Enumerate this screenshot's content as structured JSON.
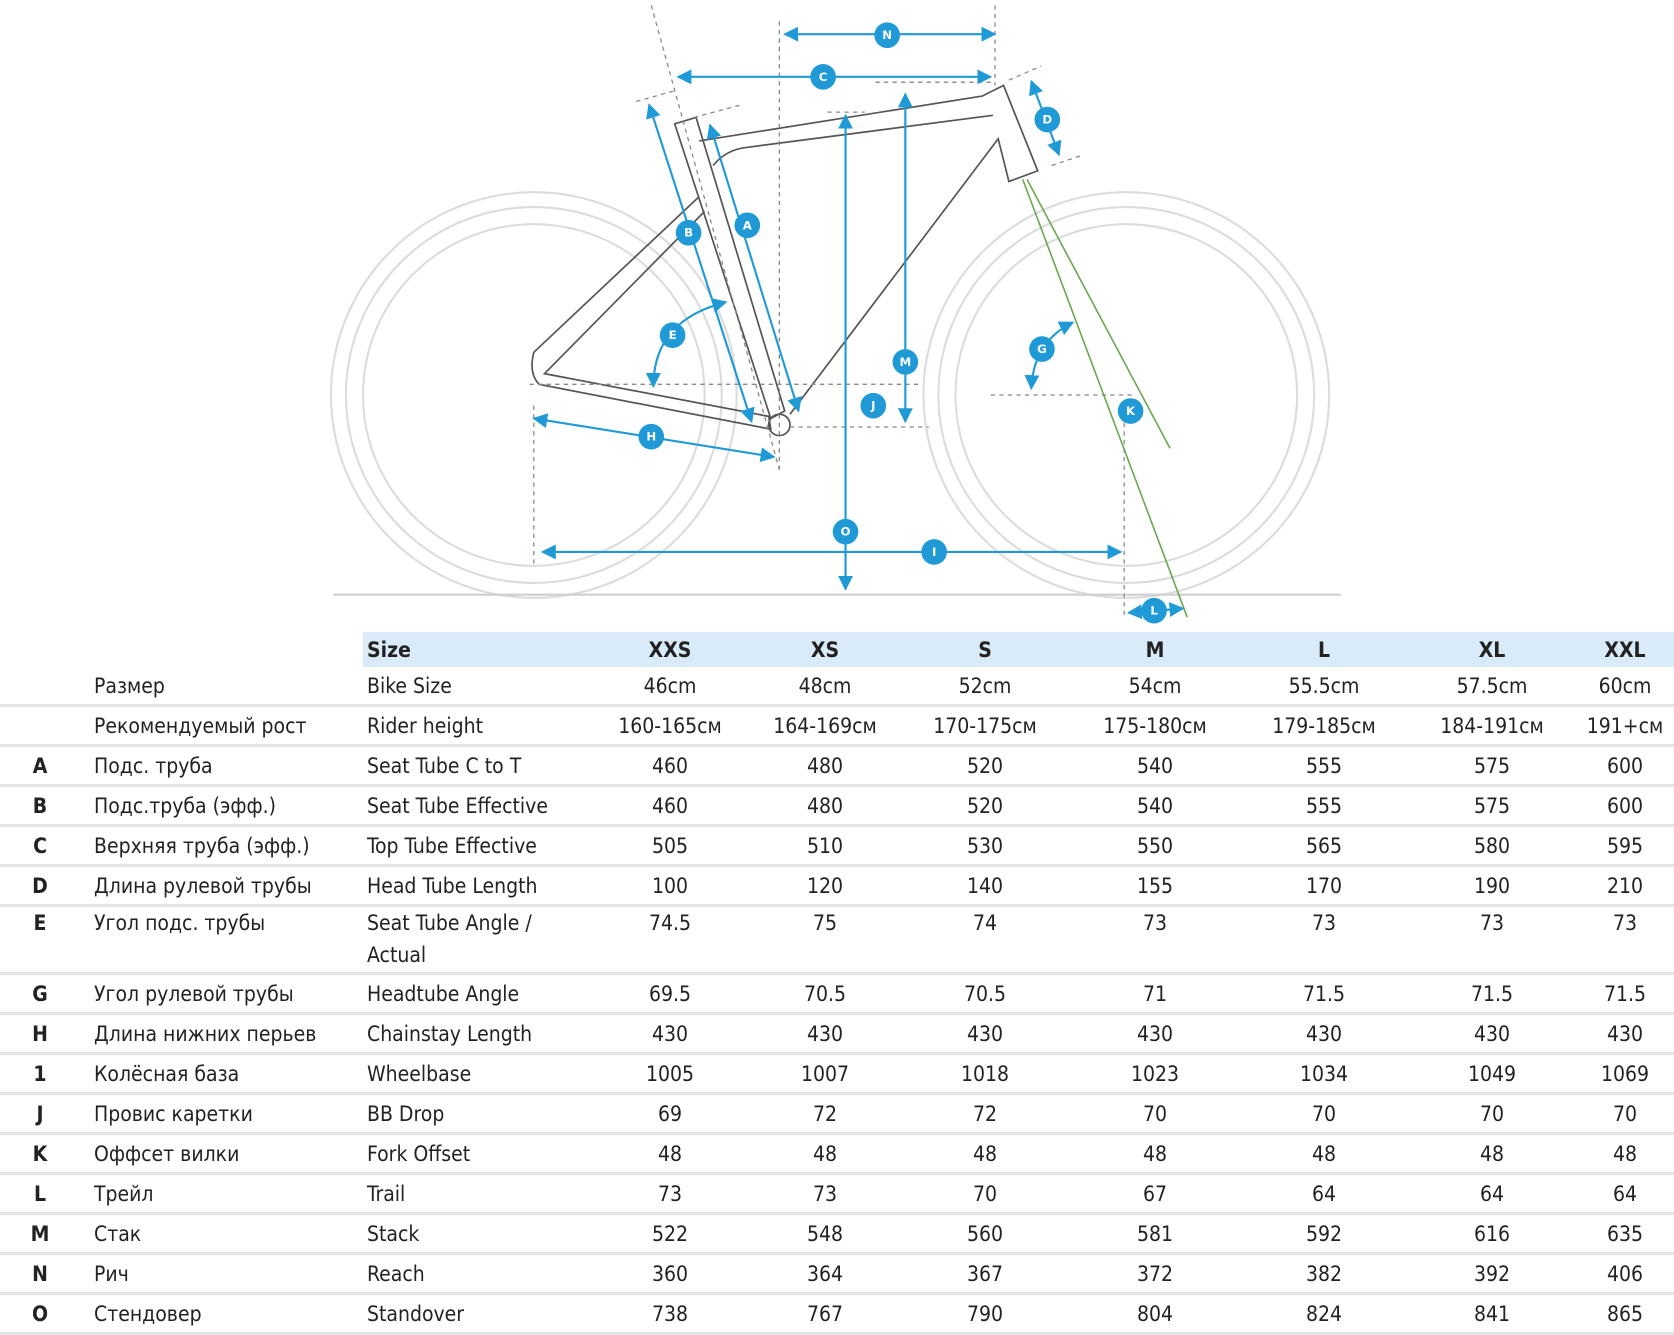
{
  "diagram": {
    "labels": [
      "N",
      "C",
      "D",
      "B",
      "A",
      "E",
      "M",
      "J",
      "G",
      "K",
      "H",
      "O",
      "I",
      "L"
    ]
  },
  "table": {
    "header": [
      "Size",
      "XXS",
      "XS",
      "S",
      "M",
      "L",
      "XL",
      "XXL"
    ],
    "rows": [
      {
        "ru": "Размер",
        "en": "Bike Size",
        "values": [
          "46cm",
          "48cm",
          "52cm",
          "54cm",
          "55.5cm",
          "57.5cm",
          "60cm"
        ]
      },
      {
        "ru": "Рекомендуемый рост",
        "en": "Rider height",
        "values": [
          "160-165см",
          "164-169см",
          "170-175см",
          "175-180см",
          "179-185см",
          "184-191см",
          "191+см"
        ]
      },
      {
        "code": "A",
        "ru": "Подс. труба",
        "en": "Seat Tube C to T",
        "values": [
          460,
          480,
          520,
          540,
          555,
          575,
          600
        ]
      },
      {
        "code": "B",
        "ru": "Подс.труба (эфф.)",
        "en": "Seat Tube Effective",
        "values": [
          460,
          480,
          520,
          540,
          555,
          575,
          600
        ]
      },
      {
        "code": "C",
        "ru": "Верхняя труба (эфф.)",
        "en": "Top Tube Effective",
        "values": [
          505,
          510,
          530,
          550,
          565,
          580,
          595
        ]
      },
      {
        "code": "D",
        "ru": "Длина рулевой трубы",
        "en": "Head Tube Length",
        "values": [
          100,
          120,
          140,
          155,
          170,
          190,
          210
        ]
      },
      {
        "code": "E",
        "ru": "Угол подс. трубы",
        "en": "Seat Tube Angle / Actual",
        "values": [
          74.5,
          75,
          74,
          73,
          73,
          73,
          73
        ]
      },
      {
        "code": "G",
        "ru": "Угол рулевой трубы",
        "en": "Headtube Angle",
        "values": [
          69.5,
          70.5,
          70.5,
          71,
          71.5,
          71.5,
          71.5
        ]
      },
      {
        "code": "H",
        "ru": "Длина нижних перьев",
        "en": "Chainstay Length",
        "values": [
          430,
          430,
          430,
          430,
          430,
          430,
          430
        ]
      },
      {
        "code": "1",
        "ru": "Колёсная база",
        "en": "Wheelbase",
        "values": [
          1005,
          1007,
          1018,
          1023,
          1034,
          1049,
          1069
        ]
      },
      {
        "code": "J",
        "ru": "Провис каретки",
        "en": "BB Drop",
        "values": [
          69,
          72,
          72,
          70,
          70,
          70,
          70
        ]
      },
      {
        "code": "K",
        "ru": "Оффсет вилки",
        "en": "Fork Offset",
        "values": [
          48,
          48,
          48,
          48,
          48,
          48,
          48
        ]
      },
      {
        "code": "L",
        "ru": "Трейл",
        "en": "Trail",
        "values": [
          73,
          73,
          70,
          67,
          64,
          64,
          64
        ]
      },
      {
        "code": "M",
        "ru": "Стак",
        "en": "Stack",
        "values": [
          522,
          548,
          560,
          581,
          592,
          616,
          635
        ]
      },
      {
        "code": "N",
        "ru": "Рич",
        "en": "Reach",
        "values": [
          360,
          364,
          367,
          372,
          382,
          392,
          406
        ]
      },
      {
        "code": "O",
        "ru": "Стендовер",
        "en": "Standover",
        "values": [
          738,
          767,
          790,
          804,
          824,
          841,
          865
        ]
      }
    ]
  }
}
